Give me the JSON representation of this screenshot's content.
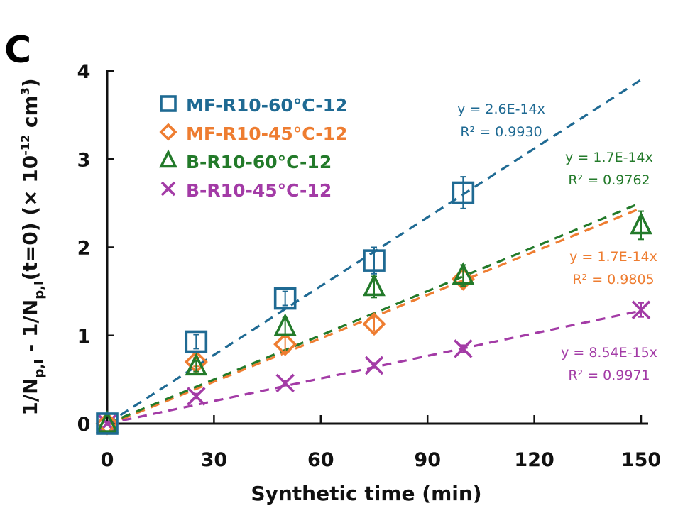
{
  "panel_label": "C",
  "chart_data": {
    "type": "scatter",
    "title": "",
    "xlabel": "Synthetic time (min)",
    "ylabel": {
      "main": "1/N",
      "parts": [
        "1/N",
        "p,I",
        " - 1/N",
        "p,I",
        "(t=0) (× 10",
        "-12",
        " cm",
        "3",
        ")"
      ],
      "plain": "1/N_p,I - 1/N_p,I(t=0) (× 10^-12 cm^3)"
    },
    "xlim": [
      0,
      150
    ],
    "ylim": [
      0,
      4
    ],
    "xticks": [
      0,
      30,
      60,
      90,
      120,
      150
    ],
    "xtick_labels": [
      "0",
      "30",
      "60",
      "90",
      "120",
      "150"
    ],
    "yticks": [
      0,
      1,
      2,
      3,
      4
    ],
    "ytick_labels": [
      "0",
      "1",
      "2",
      "3",
      "4"
    ],
    "grid": false,
    "legend_position": "top-left",
    "series": [
      {
        "name": "MF-R10-60°C-12",
        "color": "#1f6a93",
        "marker": "square",
        "x": [
          0,
          25,
          50,
          75,
          100
        ],
        "y": [
          0,
          0.93,
          1.42,
          1.85,
          2.62
        ],
        "err": [
          0,
          0.08,
          0.08,
          0.15,
          0.18
        ],
        "fit": {
          "slope": 0.026,
          "x_end": 150,
          "equation": "y = 2.6E-14x",
          "r2": "R² = 0.9930"
        }
      },
      {
        "name": "MF-R10-45°C-12",
        "color": "#ee7d31",
        "marker": "diamond",
        "x": [
          0,
          25,
          50,
          75,
          100
        ],
        "y": [
          0,
          0.7,
          0.9,
          1.13,
          1.64
        ],
        "err": [
          0,
          0.05,
          0.08,
          0.08,
          0.08
        ],
        "fit": {
          "slope": 0.0164,
          "x_end": 150,
          "equation": "y = 1.7E-14x",
          "r2": "R² = 0.9805"
        }
      },
      {
        "name": "B-R10-60°C-12",
        "color": "#237a2a",
        "marker": "triangle",
        "x": [
          0,
          25,
          50,
          75,
          100,
          150
        ],
        "y": [
          0,
          0.65,
          1.1,
          1.55,
          1.68,
          2.25
        ],
        "err": [
          0,
          0.06,
          0.1,
          0.12,
          0.12,
          0.16
        ],
        "fit": {
          "slope": 0.0167,
          "x_end": 150,
          "equation": "y = 1.7E-14x",
          "r2": "R² = 0.9762"
        }
      },
      {
        "name": "B-R10-45°C-12",
        "color": "#a33ba6",
        "marker": "cross",
        "x": [
          0,
          25,
          50,
          75,
          100,
          150
        ],
        "y": [
          0,
          0.31,
          0.46,
          0.66,
          0.85,
          1.29
        ],
        "err": [
          0,
          0.03,
          0.03,
          0.03,
          0.04,
          0.08
        ],
        "fit": {
          "slope": 0.00854,
          "x_end": 150,
          "equation": "y = 8.54E-15x",
          "r2": "R² = 0.9971"
        }
      }
    ]
  }
}
